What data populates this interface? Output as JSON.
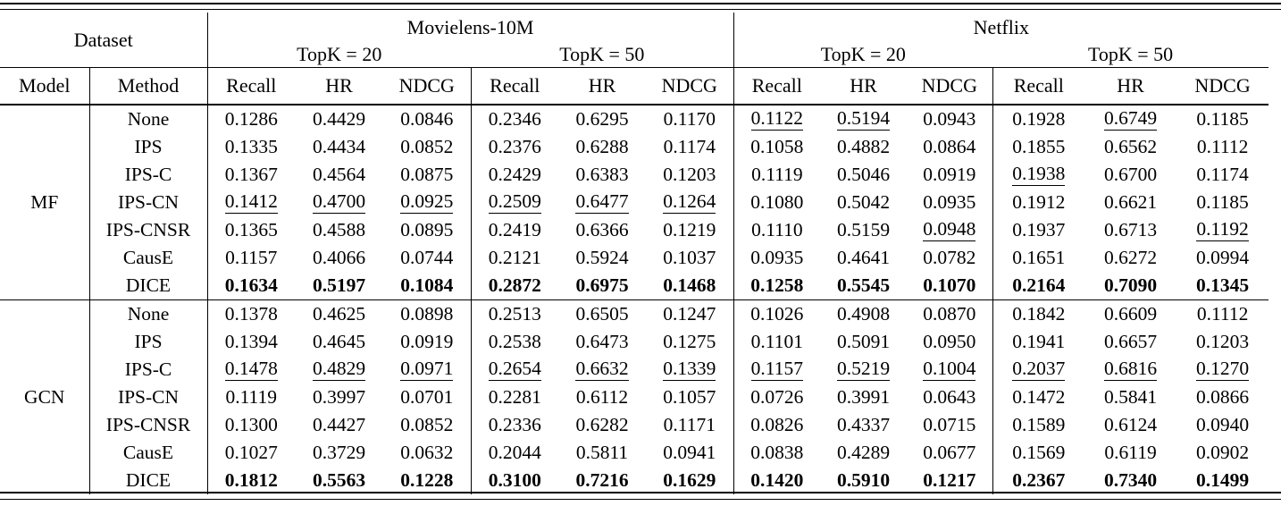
{
  "table": {
    "header": {
      "dataset_label": "Dataset",
      "datasets": [
        "Movielens-10M",
        "Netflix"
      ],
      "topk_labels": [
        "TopK = 20",
        "TopK = 50",
        "TopK = 20",
        "TopK = 50"
      ],
      "model_label": "Model",
      "method_label": "Method",
      "metrics": [
        "Recall",
        "HR",
        "NDCG"
      ]
    },
    "sections": [
      {
        "model": "MF",
        "rows": [
          {
            "method": "None",
            "cells": [
              {
                "v": "0.1286"
              },
              {
                "v": "0.4429"
              },
              {
                "v": "0.0846"
              },
              {
                "v": "0.2346"
              },
              {
                "v": "0.6295"
              },
              {
                "v": "0.1170"
              },
              {
                "v": "0.1122",
                "s": "u"
              },
              {
                "v": "0.5194",
                "s": "u"
              },
              {
                "v": "0.0943"
              },
              {
                "v": "0.1928"
              },
              {
                "v": "0.6749",
                "s": "u"
              },
              {
                "v": "0.1185"
              }
            ]
          },
          {
            "method": "IPS",
            "cells": [
              {
                "v": "0.1335"
              },
              {
                "v": "0.4434"
              },
              {
                "v": "0.0852"
              },
              {
                "v": "0.2376"
              },
              {
                "v": "0.6288"
              },
              {
                "v": "0.1174"
              },
              {
                "v": "0.1058"
              },
              {
                "v": "0.4882"
              },
              {
                "v": "0.0864"
              },
              {
                "v": "0.1855"
              },
              {
                "v": "0.6562"
              },
              {
                "v": "0.1112"
              }
            ]
          },
          {
            "method": "IPS-C",
            "cells": [
              {
                "v": "0.1367"
              },
              {
                "v": "0.4564"
              },
              {
                "v": "0.0875"
              },
              {
                "v": "0.2429"
              },
              {
                "v": "0.6383"
              },
              {
                "v": "0.1203"
              },
              {
                "v": "0.1119"
              },
              {
                "v": "0.5046"
              },
              {
                "v": "0.0919"
              },
              {
                "v": "0.1938",
                "s": "u"
              },
              {
                "v": "0.6700"
              },
              {
                "v": "0.1174"
              }
            ]
          },
          {
            "method": "IPS-CN",
            "cells": [
              {
                "v": "0.1412",
                "s": "u"
              },
              {
                "v": "0.4700",
                "s": "u"
              },
              {
                "v": "0.0925",
                "s": "u"
              },
              {
                "v": "0.2509",
                "s": "u"
              },
              {
                "v": "0.6477",
                "s": "u"
              },
              {
                "v": "0.1264",
                "s": "u"
              },
              {
                "v": "0.1080"
              },
              {
                "v": "0.5042"
              },
              {
                "v": "0.0935"
              },
              {
                "v": "0.1912"
              },
              {
                "v": "0.6621"
              },
              {
                "v": "0.1185"
              }
            ]
          },
          {
            "method": "IPS-CNSR",
            "cells": [
              {
                "v": "0.1365"
              },
              {
                "v": "0.4588"
              },
              {
                "v": "0.0895"
              },
              {
                "v": "0.2419"
              },
              {
                "v": "0.6366"
              },
              {
                "v": "0.1219"
              },
              {
                "v": "0.1110"
              },
              {
                "v": "0.5159"
              },
              {
                "v": "0.0948",
                "s": "u"
              },
              {
                "v": "0.1937"
              },
              {
                "v": "0.6713"
              },
              {
                "v": "0.1192",
                "s": "u"
              }
            ]
          },
          {
            "method": "CausE",
            "cells": [
              {
                "v": "0.1157"
              },
              {
                "v": "0.4066"
              },
              {
                "v": "0.0744"
              },
              {
                "v": "0.2121"
              },
              {
                "v": "0.5924"
              },
              {
                "v": "0.1037"
              },
              {
                "v": "0.0935"
              },
              {
                "v": "0.4641"
              },
              {
                "v": "0.0782"
              },
              {
                "v": "0.1651"
              },
              {
                "v": "0.6272"
              },
              {
                "v": "0.0994"
              }
            ]
          },
          {
            "method": "DICE",
            "bold": true,
            "cells": [
              {
                "v": "0.1634"
              },
              {
                "v": "0.5197"
              },
              {
                "v": "0.1084"
              },
              {
                "v": "0.2872"
              },
              {
                "v": "0.6975"
              },
              {
                "v": "0.1468"
              },
              {
                "v": "0.1258"
              },
              {
                "v": "0.5545"
              },
              {
                "v": "0.1070"
              },
              {
                "v": "0.2164"
              },
              {
                "v": "0.7090"
              },
              {
                "v": "0.1345"
              }
            ]
          }
        ]
      },
      {
        "model": "GCN",
        "rows": [
          {
            "method": "None",
            "cells": [
              {
                "v": "0.1378"
              },
              {
                "v": "0.4625"
              },
              {
                "v": "0.0898"
              },
              {
                "v": "0.2513"
              },
              {
                "v": "0.6505"
              },
              {
                "v": "0.1247"
              },
              {
                "v": "0.1026"
              },
              {
                "v": "0.4908"
              },
              {
                "v": "0.0870"
              },
              {
                "v": "0.1842"
              },
              {
                "v": "0.6609"
              },
              {
                "v": "0.1112"
              }
            ]
          },
          {
            "method": "IPS",
            "cells": [
              {
                "v": "0.1394"
              },
              {
                "v": "0.4645"
              },
              {
                "v": "0.0919"
              },
              {
                "v": "0.2538"
              },
              {
                "v": "0.6473"
              },
              {
                "v": "0.1275"
              },
              {
                "v": "0.1101"
              },
              {
                "v": "0.5091"
              },
              {
                "v": "0.0950"
              },
              {
                "v": "0.1941"
              },
              {
                "v": "0.6657"
              },
              {
                "v": "0.1203"
              }
            ]
          },
          {
            "method": "IPS-C",
            "cells": [
              {
                "v": "0.1478",
                "s": "u"
              },
              {
                "v": "0.4829",
                "s": "u"
              },
              {
                "v": "0.0971",
                "s": "u"
              },
              {
                "v": "0.2654",
                "s": "u"
              },
              {
                "v": "0.6632",
                "s": "u"
              },
              {
                "v": "0.1339",
                "s": "u"
              },
              {
                "v": "0.1157",
                "s": "u"
              },
              {
                "v": "0.5219",
                "s": "u"
              },
              {
                "v": "0.1004",
                "s": "u"
              },
              {
                "v": "0.2037",
                "s": "u"
              },
              {
                "v": "0.6816",
                "s": "u"
              },
              {
                "v": "0.1270",
                "s": "u"
              }
            ]
          },
          {
            "method": "IPS-CN",
            "cells": [
              {
                "v": "0.1119"
              },
              {
                "v": "0.3997"
              },
              {
                "v": "0.0701"
              },
              {
                "v": "0.2281"
              },
              {
                "v": "0.6112"
              },
              {
                "v": "0.1057"
              },
              {
                "v": "0.0726"
              },
              {
                "v": "0.3991"
              },
              {
                "v": "0.0643"
              },
              {
                "v": "0.1472"
              },
              {
                "v": "0.5841"
              },
              {
                "v": "0.0866"
              }
            ]
          },
          {
            "method": "IPS-CNSR",
            "cells": [
              {
                "v": "0.1300"
              },
              {
                "v": "0.4427"
              },
              {
                "v": "0.0852"
              },
              {
                "v": "0.2336"
              },
              {
                "v": "0.6282"
              },
              {
                "v": "0.1171"
              },
              {
                "v": "0.0826"
              },
              {
                "v": "0.4337"
              },
              {
                "v": "0.0715"
              },
              {
                "v": "0.1589"
              },
              {
                "v": "0.6124"
              },
              {
                "v": "0.0940"
              }
            ]
          },
          {
            "method": "CausE",
            "cells": [
              {
                "v": "0.1027"
              },
              {
                "v": "0.3729"
              },
              {
                "v": "0.0632"
              },
              {
                "v": "0.2044"
              },
              {
                "v": "0.5811"
              },
              {
                "v": "0.0941"
              },
              {
                "v": "0.0838"
              },
              {
                "v": "0.4289"
              },
              {
                "v": "0.0677"
              },
              {
                "v": "0.1569"
              },
              {
                "v": "0.6119"
              },
              {
                "v": "0.0902"
              }
            ]
          },
          {
            "method": "DICE",
            "bold": true,
            "cells": [
              {
                "v": "0.1812"
              },
              {
                "v": "0.5563"
              },
              {
                "v": "0.1228"
              },
              {
                "v": "0.3100"
              },
              {
                "v": "0.7216"
              },
              {
                "v": "0.1629"
              },
              {
                "v": "0.1420"
              },
              {
                "v": "0.5910"
              },
              {
                "v": "0.1217"
              },
              {
                "v": "0.2367"
              },
              {
                "v": "0.7340"
              },
              {
                "v": "0.1499"
              }
            ]
          }
        ]
      }
    ]
  }
}
